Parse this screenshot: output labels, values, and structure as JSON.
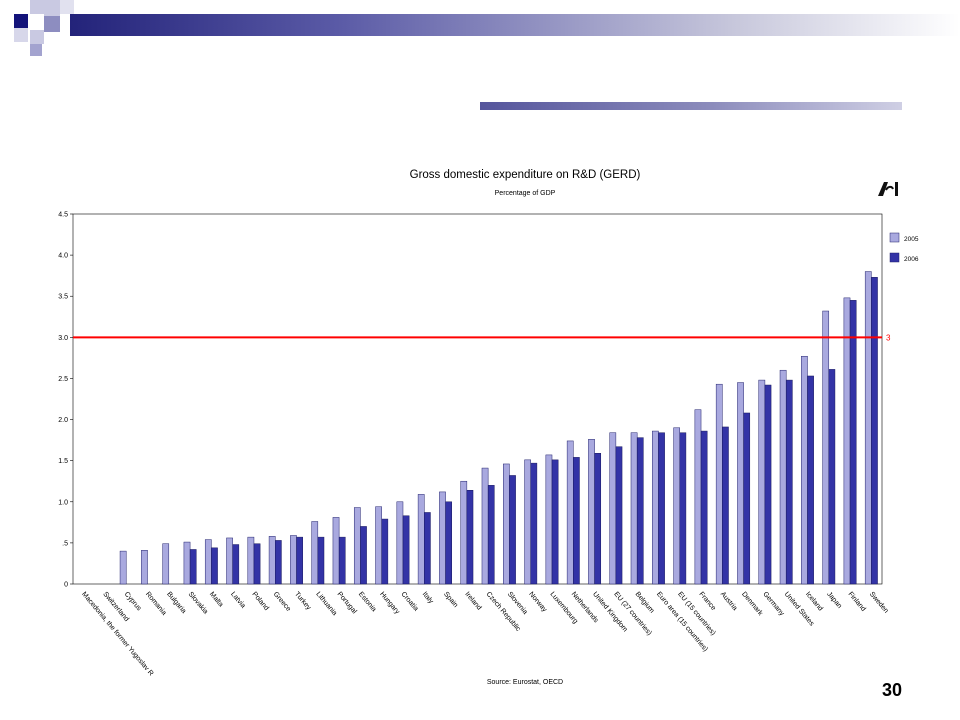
{
  "slide": {
    "number": "30"
  },
  "chart_data": {
    "type": "bar",
    "title": "Gross domestic expenditure on R&D (GERD)",
    "subtitle": "Percentage of GDP",
    "source": "Source: Eurostat, OECD",
    "ylim": [
      0,
      4.5
    ],
    "yticks": [
      "0",
      ".5",
      "1.0",
      "1.5",
      "2.0",
      "2.5",
      "3.0",
      "3.5",
      "4.0",
      "4.5"
    ],
    "reference_line": {
      "value": 3,
      "label": "3",
      "color": "#ff0000"
    },
    "legend_position": "right",
    "colors": {
      "2005": "#a9a9df",
      "2006": "#3333a6"
    },
    "categories": [
      "Macedonia, the former Yugoslav R",
      "Switzerland",
      "Cyprus",
      "Romania",
      "Bulgaria",
      "Slovakia",
      "Malta",
      "Latvia",
      "Poland",
      "Greece",
      "Turkey",
      "Lithuania",
      "Portugal",
      "Estonia",
      "Hungary",
      "Croatia",
      "Italy",
      "Spain",
      "Ireland",
      "Czech Republic",
      "Slovenia",
      "Norway",
      "Luxembourg",
      "Netherlands",
      "United Kingdom",
      "EU (27 countries)",
      "Belgium",
      "Euro area (15 countries)",
      "EU (15 countries)",
      "France",
      "Austria",
      "Denmark",
      "Germany",
      "United States",
      "Iceland",
      "Japan",
      "Finland",
      "Sweden"
    ],
    "series": [
      {
        "name": "2005",
        "values": [
          null,
          null,
          0.4,
          0.41,
          0.49,
          0.51,
          0.54,
          0.56,
          0.57,
          0.58,
          0.59,
          0.76,
          0.81,
          0.93,
          0.94,
          1.0,
          1.09,
          1.12,
          1.25,
          1.41,
          1.46,
          1.51,
          1.57,
          1.74,
          1.76,
          1.84,
          1.84,
          1.86,
          1.9,
          2.12,
          2.43,
          2.45,
          2.48,
          2.6,
          2.77,
          3.32,
          3.48,
          3.8
        ]
      },
      {
        "name": "2006",
        "values": [
          null,
          null,
          0.0,
          0.0,
          0.0,
          0.42,
          0.44,
          0.48,
          0.49,
          0.53,
          0.57,
          0.57,
          0.57,
          0.7,
          0.79,
          0.83,
          0.87,
          1.0,
          1.14,
          1.2,
          1.32,
          1.47,
          1.51,
          1.54,
          1.59,
          1.67,
          1.78,
          1.84,
          1.84,
          1.86,
          1.91,
          2.08,
          2.42,
          2.48,
          2.53,
          2.61,
          3.45,
          3.73
        ]
      }
    ]
  }
}
